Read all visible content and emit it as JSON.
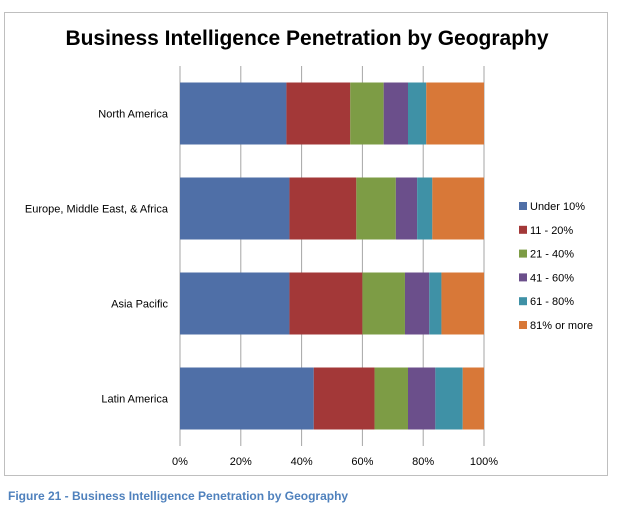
{
  "caption": "Figure 21 - Business Intelligence Penetration by Geography",
  "chart_data": {
    "type": "bar",
    "orientation": "horizontal",
    "stacked": "percent",
    "title": "Business Intelligence Penetration by Geography",
    "categories": [
      "North America",
      "Europe, Middle East, & Africa",
      "Asia Pacific",
      "Latin America"
    ],
    "series": [
      {
        "name": "Under 10%",
        "color": "#4f6fa7",
        "values": [
          35,
          36,
          36,
          44
        ]
      },
      {
        "name": "11 - 20%",
        "color": "#a33838",
        "values": [
          21,
          22,
          24,
          20
        ]
      },
      {
        "name": " 21 - 40%",
        "color": "#7d9c45",
        "values": [
          11,
          13,
          14,
          11
        ]
      },
      {
        "name": "41 - 60%",
        "color": "#6b4f8b",
        "values": [
          8,
          7,
          8,
          9
        ]
      },
      {
        "name": "61 - 80%",
        "color": "#3f91a6",
        "values": [
          6,
          5,
          4,
          9
        ]
      },
      {
        "name": "81% or more",
        "color": "#d87838",
        "values": [
          19,
          17,
          14,
          7
        ]
      }
    ],
    "x_ticks": [
      "0%",
      "20%",
      "40%",
      "60%",
      "80%",
      "100%"
    ],
    "xlim": [
      0,
      100
    ],
    "grid": true,
    "legend_position": "right"
  }
}
